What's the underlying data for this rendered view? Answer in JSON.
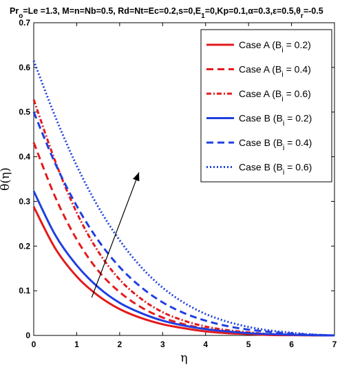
{
  "chart_data": {
    "type": "line",
    "title_parts": {
      "pr": "Pr",
      "pr_sub": "o",
      "mid": "=Le =1.3, M=n=Nb=0.5, Rd=Nt=Ec=0.2,s=0,E",
      "e_sub": "1",
      "mid2": "=0,Kp=0.1,α=0.3,ε=0.5,θ",
      "theta_sub": "r",
      "end": "=-0.5"
    },
    "xlabel": "η",
    "ylabel": "θ(η)",
    "xlim": [
      0,
      7
    ],
    "ylim": [
      0,
      0.7
    ],
    "xticks": [
      "0",
      "1",
      "2",
      "3",
      "4",
      "5",
      "6",
      "7"
    ],
    "yticks": [
      "0",
      "0.1",
      "0.2",
      "0.3",
      "0.4",
      "0.5",
      "0.6",
      "0.7"
    ],
    "grid": false,
    "legend_position": "top-right",
    "series": [
      {
        "name_prefix": "Case A (B",
        "name_sub": "i",
        "name_suffix": " = 0.2)",
        "color": "#e31a1c",
        "dash": "solid",
        "x": [
          0,
          0.5,
          1,
          1.5,
          2,
          2.5,
          3,
          3.5,
          4,
          4.5,
          5,
          5.5,
          6,
          6.5,
          7
        ],
        "y": [
          0.288,
          0.195,
          0.132,
          0.089,
          0.059,
          0.039,
          0.025,
          0.016,
          0.009,
          0.005,
          0.003,
          0.001,
          0.0005,
          0.0002,
          0
        ]
      },
      {
        "name_prefix": "Case A (B",
        "name_sub": "i",
        "name_suffix": " = 0.4)",
        "color": "#e31a1c",
        "dash": "dashed",
        "x": [
          0,
          0.5,
          1,
          1.5,
          2,
          2.5,
          3,
          3.5,
          4,
          4.5,
          5,
          5.5,
          6,
          6.5,
          7
        ],
        "y": [
          0.432,
          0.31,
          0.215,
          0.145,
          0.097,
          0.063,
          0.04,
          0.025,
          0.015,
          0.009,
          0.005,
          0.002,
          0.001,
          0.0003,
          0
        ]
      },
      {
        "name_prefix": "Case A (B",
        "name_sub": "i",
        "name_suffix": " = 0.6)",
        "color": "#e31a1c",
        "dash": "dashdot",
        "x": [
          0,
          0.5,
          1,
          1.5,
          2,
          2.5,
          3,
          3.5,
          4,
          4.5,
          5,
          5.5,
          6,
          6.5,
          7
        ],
        "y": [
          0.528,
          0.39,
          0.275,
          0.188,
          0.125,
          0.082,
          0.052,
          0.033,
          0.02,
          0.012,
          0.007,
          0.003,
          0.0015,
          0.0005,
          0
        ]
      },
      {
        "name_prefix": "Case B (B",
        "name_sub": "i",
        "name_suffix": " = 0.2)",
        "color": "#1f3fe0",
        "dash": "solid",
        "x": [
          0,
          0.5,
          1,
          1.5,
          2,
          2.5,
          3,
          3.5,
          4,
          4.5,
          5,
          5.5,
          6,
          6.5,
          7
        ],
        "y": [
          0.323,
          0.225,
          0.157,
          0.108,
          0.073,
          0.05,
          0.033,
          0.022,
          0.014,
          0.009,
          0.005,
          0.003,
          0.0015,
          0.0005,
          0
        ]
      },
      {
        "name_prefix": "Case B (B",
        "name_sub": "i",
        "name_suffix": " = 0.4)",
        "color": "#1f3fe0",
        "dash": "dashed",
        "x": [
          0,
          0.5,
          1,
          1.5,
          2,
          2.5,
          3,
          3.5,
          4,
          4.5,
          5,
          5.5,
          6,
          6.5,
          7
        ],
        "y": [
          0.5,
          0.385,
          0.29,
          0.213,
          0.153,
          0.108,
          0.074,
          0.05,
          0.033,
          0.021,
          0.013,
          0.008,
          0.004,
          0.0015,
          0
        ]
      },
      {
        "name_prefix": "Case B (B",
        "name_sub": "i",
        "name_suffix": " = 0.6)",
        "color": "#1f3fe0",
        "dash": "dotted",
        "x": [
          0,
          0.5,
          1,
          1.5,
          2,
          2.5,
          3,
          3.5,
          4,
          4.5,
          5,
          5.5,
          6,
          6.5,
          7
        ],
        "y": [
          0.615,
          0.49,
          0.38,
          0.288,
          0.213,
          0.153,
          0.107,
          0.073,
          0.048,
          0.031,
          0.019,
          0.011,
          0.006,
          0.002,
          0
        ]
      }
    ],
    "annotation": {
      "type": "arrow",
      "from": [
        1.35,
        0.085
      ],
      "to": [
        2.45,
        0.365
      ],
      "color": "#000000"
    }
  }
}
